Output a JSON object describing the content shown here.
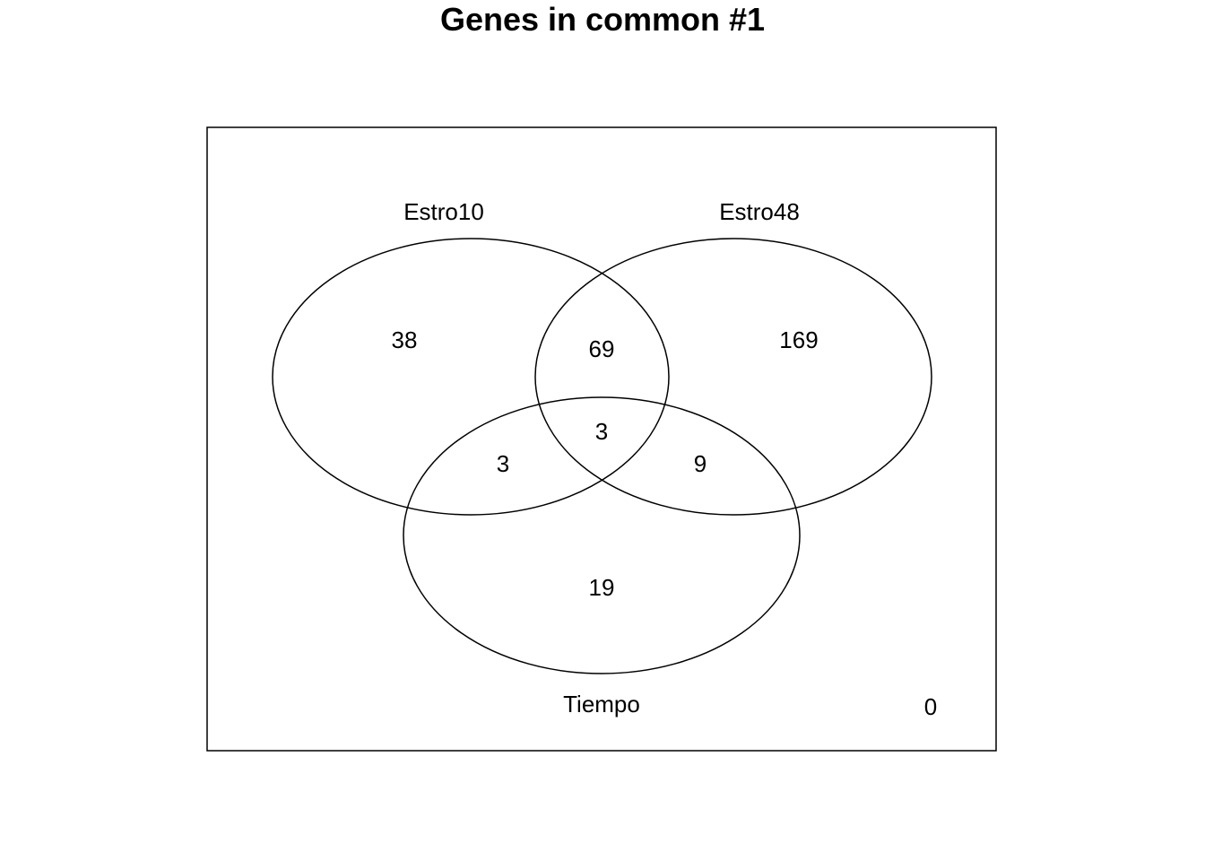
{
  "title": "Genes in common #1",
  "sets": [
    {
      "id": "a",
      "label": "Estro10"
    },
    {
      "id": "b",
      "label": "Estro48"
    },
    {
      "id": "c",
      "label": "Tiempo"
    }
  ],
  "regions": {
    "a_only": "38",
    "b_only": "169",
    "c_only": "19",
    "ab": "69",
    "ac": "3",
    "bc": "9",
    "abc": "3",
    "none": "0"
  },
  "colors": {
    "stroke": "#000000",
    "background": "#ffffff"
  }
}
